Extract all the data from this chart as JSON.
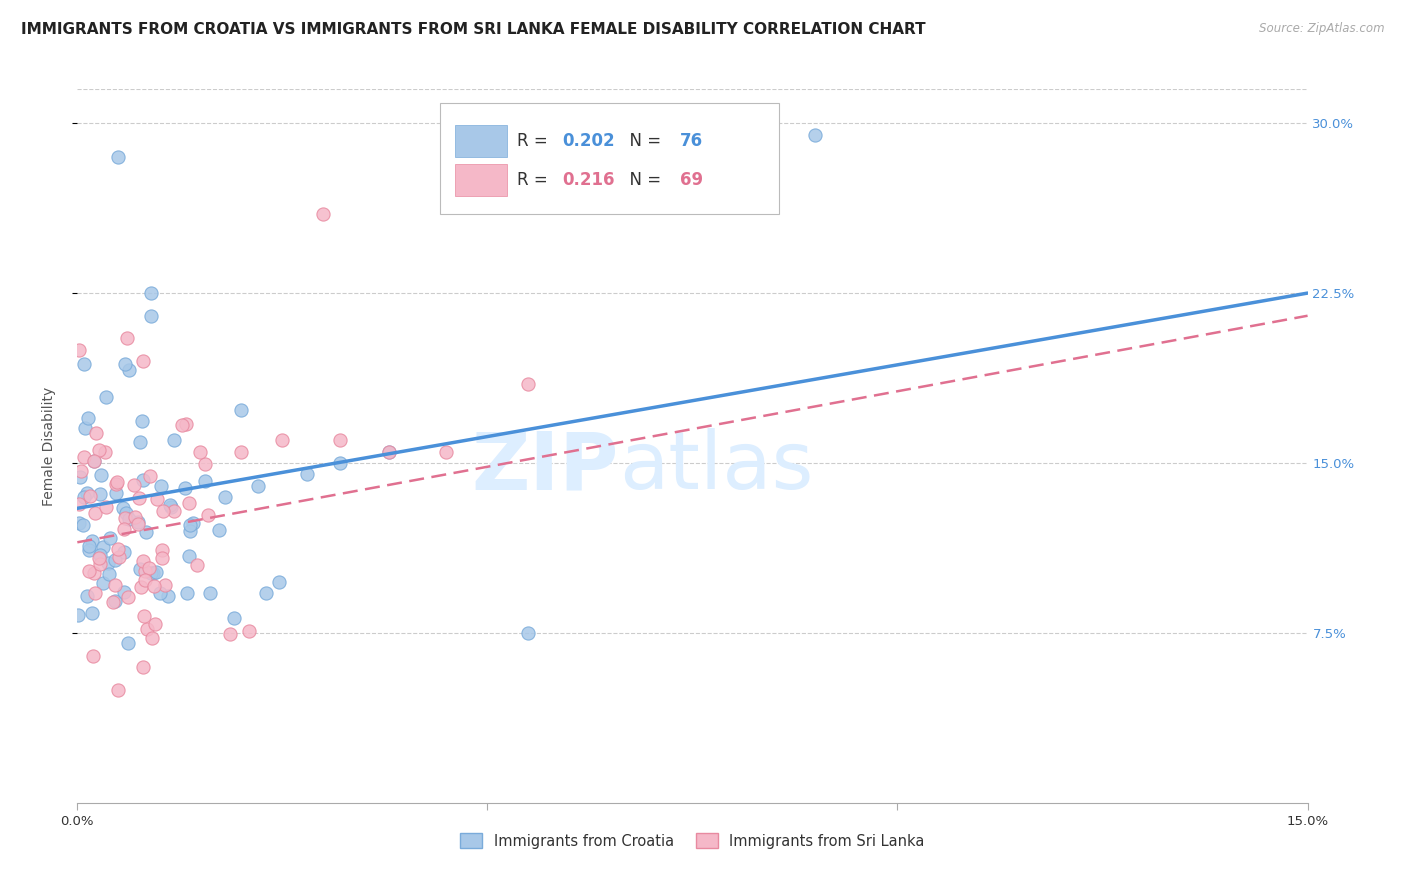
{
  "title": "IMMIGRANTS FROM CROATIA VS IMMIGRANTS FROM SRI LANKA FEMALE DISABILITY CORRELATION CHART",
  "source_text": "Source: ZipAtlas.com",
  "ylabel": "Female Disability",
  "watermark_part1": "ZIP",
  "watermark_part2": "atlas",
  "xlim": [
    0.0,
    0.15
  ],
  "ylim": [
    0.0,
    0.315
  ],
  "x_tick_vals": [
    0.0,
    0.05,
    0.1,
    0.15
  ],
  "x_tick_labels": [
    "0.0%",
    "",
    "",
    "15.0%"
  ],
  "y_tick_vals": [
    0.075,
    0.15,
    0.225,
    0.3
  ],
  "y_tick_labels": [
    "7.5%",
    "15.0%",
    "22.5%",
    "30.0%"
  ],
  "croatia_color": "#a8c8e8",
  "sri_lanka_color": "#f5b8c8",
  "croatia_edge_color": "#7aabda",
  "sri_lanka_edge_color": "#e88aa0",
  "regression_croatia_color": "#4a90d9",
  "regression_sri_lanka_color": "#e07090",
  "background_color": "#ffffff",
  "grid_color": "#cccccc",
  "title_fontsize": 11,
  "axis_label_fontsize": 10,
  "tick_fontsize": 9.5,
  "legend_box_croatia": "#a8c8e8",
  "legend_box_sri_lanka": "#f5b8c8",
  "legend_text_color": "#333333",
  "legend_val_color_croatia": "#4a90d9",
  "legend_val_color_sri_lanka": "#e07090",
  "R_croatia": "0.202",
  "N_croatia": "76",
  "R_sri_lanka": "0.216",
  "N_sri_lanka": "69",
  "bottom_legend_label1": "Immigrants from Croatia",
  "bottom_legend_label2": "Immigrants from Sri Lanka",
  "seed": 42
}
